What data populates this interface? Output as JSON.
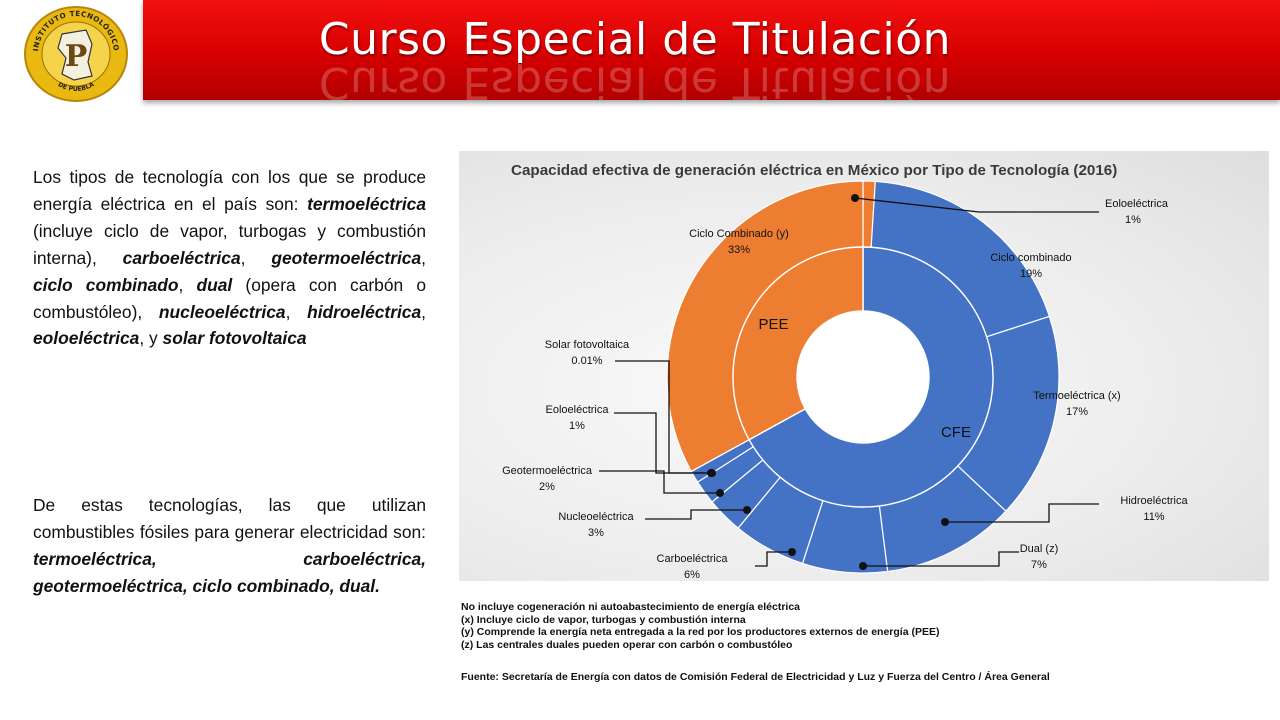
{
  "header": {
    "title": "Curso Especial de Titulación",
    "logo": {
      "top_text": "INSTITUTO TECNOLÓGICO",
      "bottom_text": "DE PUEBLA"
    }
  },
  "text": {
    "p1": [
      {
        "t": "Los tipos de tecnología con los que se produce energía eléctrica en el país son: ",
        "s": ""
      },
      {
        "t": "termoeléctrica",
        "s": "bi"
      },
      {
        "t": " (incluye ciclo de vapor, turbogas y combustión interna), ",
        "s": ""
      },
      {
        "t": "carboeléctrica",
        "s": "bi"
      },
      {
        "t": ", ",
        "s": ""
      },
      {
        "t": "geotermoeléctrica",
        "s": "bi"
      },
      {
        "t": ", ",
        "s": ""
      },
      {
        "t": "ciclo combinado",
        "s": "bi"
      },
      {
        "t": ", ",
        "s": ""
      },
      {
        "t": "dual",
        "s": "bi"
      },
      {
        "t": " (opera con carbón o combustóleo), ",
        "s": ""
      },
      {
        "t": "nucleoeléctrica",
        "s": "bi"
      },
      {
        "t": ", ",
        "s": ""
      },
      {
        "t": "hidroeléctrica",
        "s": "bi"
      },
      {
        "t": ", ",
        "s": ""
      },
      {
        "t": "eoloeléctrica",
        "s": "bi"
      },
      {
        "t": ", y ",
        "s": ""
      },
      {
        "t": "solar fotovoltaica",
        "s": "bi"
      }
    ],
    "p2": [
      {
        "t": "De estas tecnologías, las que utilizan combustibles fósiles para generar electricidad son: ",
        "s": ""
      },
      {
        "t": "termoeléctrica, carboeléctrica, geotermoeléctrica, ciclo combinado, dual.",
        "s": "bi"
      }
    ]
  },
  "chart_data": {
    "type": "pie",
    "style": "donut-sunburst",
    "title": "Capacidad efectiva de generación eléctrica en México por Tipo de Tecnología  (2016)",
    "inner_ring": [
      {
        "label": "CFE",
        "color": "#4472c4",
        "value": 66.99
      },
      {
        "label": "PEE",
        "color": "#ed7d31",
        "value": 33.01
      }
    ],
    "outer_ring": [
      {
        "label": "Eoloeléctrica",
        "value_label": "1%",
        "value": 1,
        "group": "PEE",
        "color": "#ed7d31"
      },
      {
        "label": "Ciclo combinado",
        "value_label": "19%",
        "value": 19,
        "group": "CFE",
        "color": "#4472c4"
      },
      {
        "label": "Termoeléctrica (x)",
        "value_label": "17%",
        "value": 17,
        "group": "CFE",
        "color": "#4472c4"
      },
      {
        "label": "Hidroeléctrica",
        "value_label": "11%",
        "value": 11,
        "group": "CFE",
        "color": "#4472c4"
      },
      {
        "label": "Dual (z)",
        "value_label": "7%",
        "value": 7,
        "group": "CFE",
        "color": "#4472c4"
      },
      {
        "label": "Carboeléctrica",
        "value_label": "6%",
        "value": 6,
        "group": "CFE",
        "color": "#4472c4"
      },
      {
        "label": "Nucleoeléctrica",
        "value_label": "3%",
        "value": 3,
        "group": "CFE",
        "color": "#4472c4"
      },
      {
        "label": "Geotermoeléctrica",
        "value_label": "2%",
        "value": 2,
        "group": "CFE",
        "color": "#4472c4"
      },
      {
        "label": "Eoloeléctrica",
        "value_label": "1%",
        "value": 1,
        "group": "CFE",
        "color": "#4472c4"
      },
      {
        "label": "Solar fotovoltaica",
        "value_label": "0.01%",
        "value": 0.01,
        "group": "CFE",
        "color": "#4472c4"
      },
      {
        "label": "Ciclo Combinado (y)",
        "value_label": "33%",
        "value": 33,
        "group": "PEE",
        "color": "#ed7d31"
      }
    ],
    "legend": "none",
    "grid": false
  },
  "notes": [
    "No incluye cogeneración ni autoabastecimiento de energía eléctrica",
    "(x) Incluye ciclo de vapor, turbogas y combustión interna",
    "(y) Comprende la energía neta entregada a la red por los productores externos de energía (PEE)",
    "(z) Las centrales duales pueden operar con carbón o combustóleo"
  ],
  "source": "Fuente: Secretaría de Energía con datos de Comisión Federal de Electricidad y Luz y Fuerza del Centro / Área General"
}
